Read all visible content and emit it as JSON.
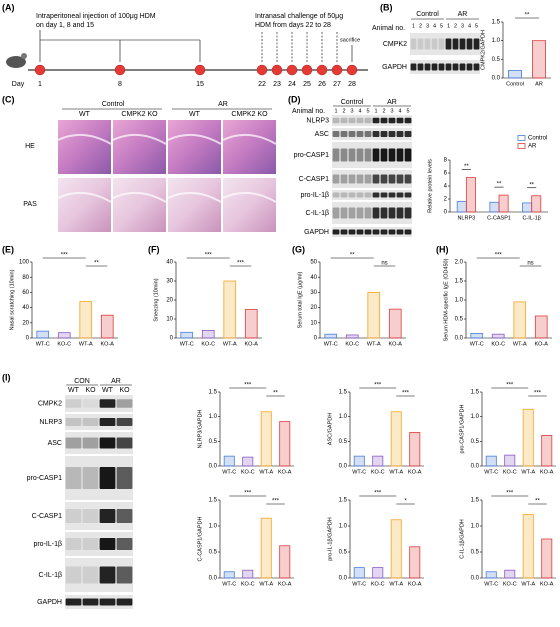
{
  "panels": {
    "labels": [
      "(A)",
      "(B)",
      "(C)",
      "(D)",
      "(E)",
      "(F)",
      "(G)",
      "(H)",
      "(I)"
    ],
    "A": {
      "text1_lines": [
        "Intraperitoneal injection of 100μg HDM",
        "on day 1, 8 and 15"
      ],
      "text2_lines": [
        "Intranasal challenge of 50μg",
        "HDM from days 22 to 28"
      ],
      "sacrifice": "sacrifice",
      "day_word": "Day",
      "days": [
        "1",
        "8",
        "15",
        "22",
        "23",
        "24",
        "25",
        "26",
        "27",
        "28"
      ]
    },
    "B": {
      "animal_no": "Animal no.",
      "groups": [
        "Control",
        "AR"
      ],
      "lanes": [
        "1",
        "2",
        "3",
        "4",
        "5"
      ],
      "rows": [
        "CMPK2",
        "GAPDH"
      ]
    },
    "C": {
      "groups": [
        "Control",
        "AR"
      ],
      "subgroups": [
        "WT",
        "CMPK2 KO"
      ],
      "rows": [
        "HE",
        "PAS"
      ]
    },
    "D": {
      "animal_no": "Animal no.",
      "groups": [
        "Control",
        "AR"
      ],
      "lanes": [
        "1",
        "2",
        "3",
        "4",
        "5"
      ],
      "rows": [
        "NLRP3",
        "ASC",
        "pro-CASP1",
        "C-CASP1",
        "pro-IL-1β",
        "C-IL-1β",
        "GAPDH"
      ]
    },
    "I": {
      "groups": [
        "CON",
        "AR"
      ],
      "subgroups": [
        "WT",
        "KO"
      ],
      "rows": [
        "CMPK2",
        "NLRP3",
        "ASC",
        "pro-CASP1",
        "C-CASP1",
        "pro-IL-1β",
        "C-IL-1β",
        "GAPDH"
      ]
    }
  },
  "chart_data": [
    {
      "type": "bar",
      "ylabel": "CMPK2/GAPDH",
      "categories": [
        "Control",
        "AR"
      ],
      "values": [
        0.2,
        1.0
      ],
      "colors": [
        "#4a7fd8",
        "#e03c3c"
      ],
      "ylim": [
        0,
        1.5
      ],
      "yticks": [
        {
          "value": 0,
          "label": "0.0"
        },
        0.5,
        {
          "value": 1,
          "label": "1.0"
        },
        1.5
      ],
      "significance": [
        "**"
      ]
    },
    {
      "type": "bar",
      "ylabel": "Relative protein levels",
      "categories": [
        "NLRP3",
        "C-CASP1",
        "C-IL-1β"
      ],
      "series": [
        {
          "name": "Control",
          "color": "#4a7fd8",
          "values": [
            1.6,
            1.5,
            1.4
          ]
        },
        {
          "name": "AR",
          "color": "#e03c3c",
          "values": [
            5.3,
            2.6,
            2.5
          ]
        }
      ],
      "ylim": [
        0,
        8
      ],
      "yticks": [
        0,
        2,
        4,
        6,
        8
      ],
      "legend": "upper right",
      "significance": [
        "**",
        "**",
        "**"
      ]
    },
    {
      "type": "bar",
      "ylabel": "Nasal scratching (10min)",
      "categories": [
        "WT-C",
        "KO-C",
        "WT-A",
        "KO-A"
      ],
      "values": [
        9,
        7,
        48,
        30
      ],
      "colors": [
        "#4a7fd8",
        "#8a5cc8",
        "#f5a623",
        "#e03c3c"
      ],
      "ylim": [
        0,
        100
      ],
      "yticks": [
        0,
        20,
        40,
        60,
        80,
        100
      ],
      "significance": [
        "***",
        "**"
      ]
    },
    {
      "type": "bar",
      "ylabel": "Sneezing (10min)",
      "categories": [
        "WT-C",
        "KO-C",
        "WT-A",
        "KO-A"
      ],
      "values": [
        3,
        4,
        30,
        15
      ],
      "colors": [
        "#4a7fd8",
        "#8a5cc8",
        "#f5a623",
        "#e03c3c"
      ],
      "ylim": [
        0,
        40
      ],
      "yticks": [
        0,
        10,
        20,
        30,
        40
      ],
      "significance": [
        "***",
        "***"
      ]
    },
    {
      "type": "bar",
      "ylabel": "Serum total IgE (μg/ml)",
      "categories": [
        "WT-C",
        "KO-C",
        "WT-A",
        "KO-A"
      ],
      "values": [
        2.5,
        2,
        30,
        19
      ],
      "colors": [
        "#4a7fd8",
        "#8a5cc8",
        "#f5a623",
        "#e03c3c"
      ],
      "ylim": [
        0,
        50
      ],
      "yticks": [
        0,
        10,
        20,
        30,
        40,
        50
      ],
      "significance": [
        "**",
        "ns"
      ]
    },
    {
      "type": "bar",
      "ylabel": "Serum HDM-specific IgE (OD450)",
      "categories": [
        "WT-C",
        "KO-C",
        "WT-A",
        "KO-A"
      ],
      "values": [
        0.12,
        0.1,
        0.95,
        0.58
      ],
      "colors": [
        "#4a7fd8",
        "#8a5cc8",
        "#f5a623",
        "#e03c3c"
      ],
      "ylim": [
        0,
        2
      ],
      "yticks": [
        {
          "value": 0,
          "label": "0.0"
        },
        0.5,
        {
          "value": 1,
          "label": "1.0"
        },
        1.5,
        {
          "value": 2,
          "label": "2.0"
        }
      ],
      "significance": [
        "***",
        "ns"
      ]
    },
    {
      "type": "bar",
      "ylabel": "NLRP3/GAPDH",
      "categories": [
        "WT-C",
        "KO-C",
        "WT-A",
        "KO-A"
      ],
      "values": [
        0.2,
        0.18,
        1.1,
        0.9
      ],
      "colors": [
        "#4a7fd8",
        "#8a5cc8",
        "#f5a623",
        "#e03c3c"
      ],
      "ylim": [
        0,
        1.5
      ],
      "yticks": [
        {
          "value": 0,
          "label": "0.0"
        },
        0.5,
        {
          "value": 1,
          "label": "1.0"
        },
        1.5
      ],
      "significance": [
        "***",
        "**"
      ]
    },
    {
      "type": "bar",
      "ylabel": "ASC/GAPDH",
      "categories": [
        "WT-C",
        "KO-C",
        "WT-A",
        "KO-A"
      ],
      "values": [
        0.2,
        0.2,
        1.1,
        0.68
      ],
      "colors": [
        "#4a7fd8",
        "#8a5cc8",
        "#f5a623",
        "#e03c3c"
      ],
      "ylim": [
        0,
        1.5
      ],
      "yticks": [
        {
          "value": 0,
          "label": "0.0"
        },
        0.5,
        {
          "value": 1,
          "label": "1.0"
        },
        1.5
      ],
      "significance": [
        "***",
        "***"
      ]
    },
    {
      "type": "bar",
      "ylabel": "pro-CASP1/GAPDH",
      "categories": [
        "WT-C",
        "KO-C",
        "WT-A",
        "KO-A"
      ],
      "values": [
        0.2,
        0.22,
        1.15,
        0.62
      ],
      "colors": [
        "#4a7fd8",
        "#8a5cc8",
        "#f5a623",
        "#e03c3c"
      ],
      "ylim": [
        0,
        1.5
      ],
      "yticks": [
        {
          "value": 0,
          "label": "0.0"
        },
        0.5,
        {
          "value": 1,
          "label": "1.0"
        },
        1.5
      ],
      "significance": [
        "***",
        "***"
      ]
    },
    {
      "type": "bar",
      "ylabel": "C-CASP1/GAPDH",
      "categories": [
        "WT-C",
        "KO-C",
        "WT-A",
        "KO-A"
      ],
      "values": [
        0.12,
        0.15,
        1.15,
        0.62
      ],
      "colors": [
        "#4a7fd8",
        "#8a5cc8",
        "#f5a623",
        "#e03c3c"
      ],
      "ylim": [
        0,
        1.5
      ],
      "yticks": [
        {
          "value": 0,
          "label": "0.0"
        },
        0.5,
        {
          "value": 1,
          "label": "1.0"
        },
        1.5
      ],
      "significance": [
        "***",
        "***"
      ]
    },
    {
      "type": "bar",
      "ylabel": "pro-IL-1β/GAPDH",
      "categories": [
        "WT-C",
        "KO-C",
        "WT-A",
        "KO-A"
      ],
      "values": [
        0.2,
        0.2,
        1.12,
        0.6
      ],
      "colors": [
        "#4a7fd8",
        "#8a5cc8",
        "#f5a623",
        "#e03c3c"
      ],
      "ylim": [
        0,
        1.5
      ],
      "yticks": [
        {
          "value": 0,
          "label": "0.0"
        },
        0.5,
        {
          "value": 1,
          "label": "1.0"
        },
        1.5
      ],
      "significance": [
        "***",
        "*"
      ]
    },
    {
      "type": "bar",
      "ylabel": "C-IL-1β/GAPDH",
      "categories": [
        "WT-C",
        "KO-C",
        "WT-A",
        "KO-A"
      ],
      "values": [
        0.12,
        0.15,
        1.22,
        0.75
      ],
      "colors": [
        "#4a7fd8",
        "#8a5cc8",
        "#f5a623",
        "#e03c3c"
      ],
      "ylim": [
        0,
        1.5
      ],
      "yticks": [
        {
          "value": 0,
          "label": "0.0"
        },
        0.5,
        {
          "value": 1,
          "label": "1.0"
        },
        1.5
      ],
      "significance": [
        "***",
        "**"
      ]
    }
  ]
}
